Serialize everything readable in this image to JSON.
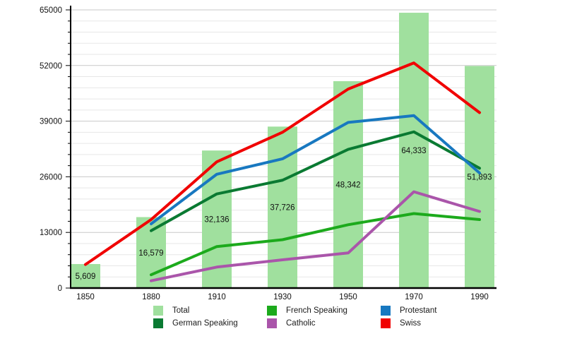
{
  "chart_data": {
    "type": "bar",
    "subtype": "bar-with-lines",
    "title": "",
    "xlabel": "",
    "ylabel": "",
    "categories": [
      "1850",
      "1880",
      "1910",
      "1930",
      "1950",
      "1970",
      "1990"
    ],
    "bar_series": {
      "name": "Total",
      "color": "#a0e09e",
      "values": [
        5609,
        16579,
        32136,
        37726,
        48342,
        64333,
        51893
      ],
      "labels": [
        "5,609",
        "16,579",
        "32,136",
        "37,726",
        "48,342",
        "64,333",
        "51,893"
      ]
    },
    "line_series": [
      {
        "name": "French Speaking",
        "color": "#1caa1c",
        "values": [
          null,
          3100,
          9700,
          11300,
          14800,
          17400,
          16000
        ]
      },
      {
        "name": "Catholic",
        "color": "#aa55aa",
        "values": [
          null,
          1700,
          4900,
          6600,
          8200,
          22500,
          17900
        ]
      },
      {
        "name": "German Speaking",
        "color": "#0a7a32",
        "values": [
          null,
          13400,
          22000,
          25200,
          32400,
          36500,
          28000
        ]
      },
      {
        "name": "Protestant",
        "color": "#1878c0",
        "values": [
          null,
          15000,
          26600,
          30200,
          38700,
          40300,
          26900
        ]
      },
      {
        "name": "Swiss",
        "color": "#f00000",
        "values": [
          5500,
          16000,
          29500,
          36400,
          46500,
          52600,
          41000
        ]
      }
    ],
    "y_axis": {
      "min": 0,
      "max": 65000,
      "major_step": 13000,
      "minor_step": 2600,
      "tick_labels": [
        "0",
        "13000",
        "26000",
        "39000",
        "52000",
        "65000"
      ]
    },
    "x_axis": {
      "tick_labels": [
        "1850",
        "1880",
        "1910",
        "1930",
        "1950",
        "1970",
        "1990"
      ]
    },
    "grid": true,
    "legend": {
      "position": "bottom",
      "entries": [
        {
          "label": "Total",
          "color": "#a0e09e"
        },
        {
          "label": "French Speaking",
          "color": "#1caa1c"
        },
        {
          "label": "Protestant",
          "color": "#1878c0"
        },
        {
          "label": "German Speaking",
          "color": "#0a7a32"
        },
        {
          "label": "Catholic",
          "color": "#aa55aa"
        },
        {
          "label": "Swiss",
          "color": "#f00000"
        }
      ]
    },
    "colors": {
      "background": "#ffffff",
      "axis": "#000000",
      "major_gridline": "#c9c9c9",
      "minor_gridline": "#e7e7e7",
      "label_text": "#111111"
    }
  }
}
